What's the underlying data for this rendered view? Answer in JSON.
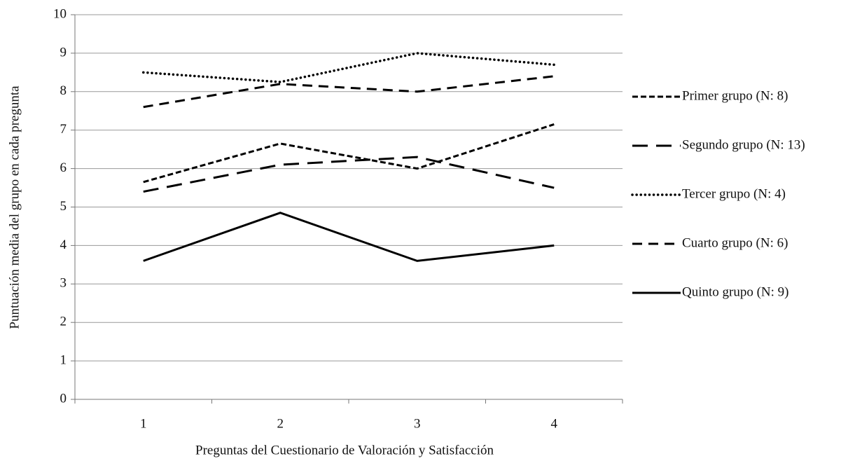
{
  "chart_data": {
    "type": "line",
    "x_label": "Preguntas del Cuestionario de Valoración y Satisfacción",
    "y_label": "Puntuación media del grupo en cada pregunta",
    "categories": [
      "1",
      "2",
      "3",
      "4"
    ],
    "series": [
      {
        "name": "Primer grupo (N: 8)",
        "color": "#000000",
        "dash": "short",
        "values": [
          5.65,
          6.65,
          6.0,
          7.15
        ]
      },
      {
        "name": "Segundo grupo (N: 13)",
        "color": "#000000",
        "dash": "long",
        "values": [
          5.4,
          6.1,
          6.3,
          5.5
        ]
      },
      {
        "name": "Tercer grupo (N: 4)",
        "color": "#000000",
        "dash": "dot",
        "values": [
          8.5,
          8.25,
          9.0,
          8.7
        ]
      },
      {
        "name": "Cuarto grupo (N: 6)",
        "color": "#000000",
        "dash": "medium",
        "values": [
          7.6,
          8.2,
          8.0,
          8.4
        ]
      },
      {
        "name": "Quinto grupo (N: 9)",
        "color": "#000000",
        "dash": "solid",
        "values": [
          3.6,
          4.85,
          3.6,
          4.0
        ]
      }
    ],
    "ylim": [
      0,
      10
    ],
    "yticks": [
      0,
      1,
      2,
      3,
      4,
      5,
      6,
      7,
      8,
      9,
      10
    ],
    "grid": true,
    "legend": "right"
  }
}
